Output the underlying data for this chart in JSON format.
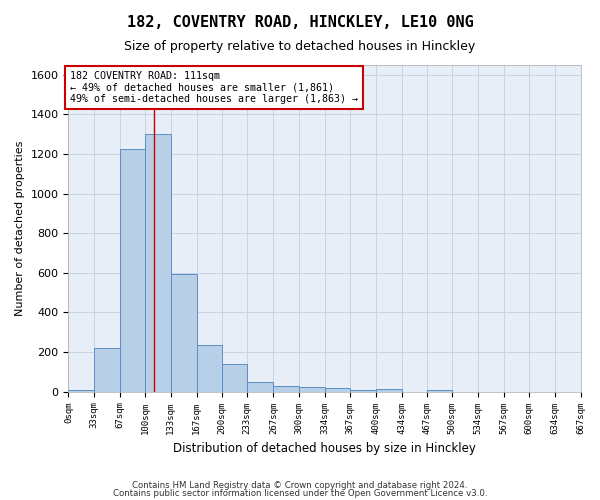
{
  "title": "182, COVENTRY ROAD, HINCKLEY, LE10 0NG",
  "subtitle": "Size of property relative to detached houses in Hinckley",
  "xlabel": "Distribution of detached houses by size in Hinckley",
  "ylabel": "Number of detached properties",
  "footnote1": "Contains HM Land Registry data © Crown copyright and database right 2024.",
  "footnote2": "Contains public sector information licensed under the Open Government Licence v3.0.",
  "bin_edges": [
    0,
    33,
    67,
    100,
    133,
    167,
    200,
    233,
    267,
    300,
    334,
    367,
    400,
    434,
    467,
    500,
    534,
    567,
    600,
    634,
    667
  ],
  "bar_heights": [
    10,
    220,
    1225,
    1300,
    595,
    235,
    140,
    50,
    30,
    22,
    20,
    10,
    15,
    0,
    10,
    0,
    0,
    0,
    0,
    0
  ],
  "bar_color": "#b8cfe8",
  "bar_edge_color": "#5b8ec4",
  "grid_color": "#c8d4e6",
  "bg_color": "#ffffff",
  "plot_bg_color": "#e8eef8",
  "vline_x": 111,
  "vline_color": "#cc0000",
  "annotation_text": "182 COVENTRY ROAD: 111sqm\n← 49% of detached houses are smaller (1,861)\n49% of semi-detached houses are larger (1,863) →",
  "annotation_box_color": "#ffffff",
  "annotation_box_edge": "#cc0000",
  "ylim": [
    0,
    1650
  ],
  "xlim": [
    0,
    667
  ],
  "yticks": [
    0,
    200,
    400,
    600,
    800,
    1000,
    1200,
    1400,
    1600
  ],
  "title_fontsize": 11,
  "subtitle_fontsize": 9
}
